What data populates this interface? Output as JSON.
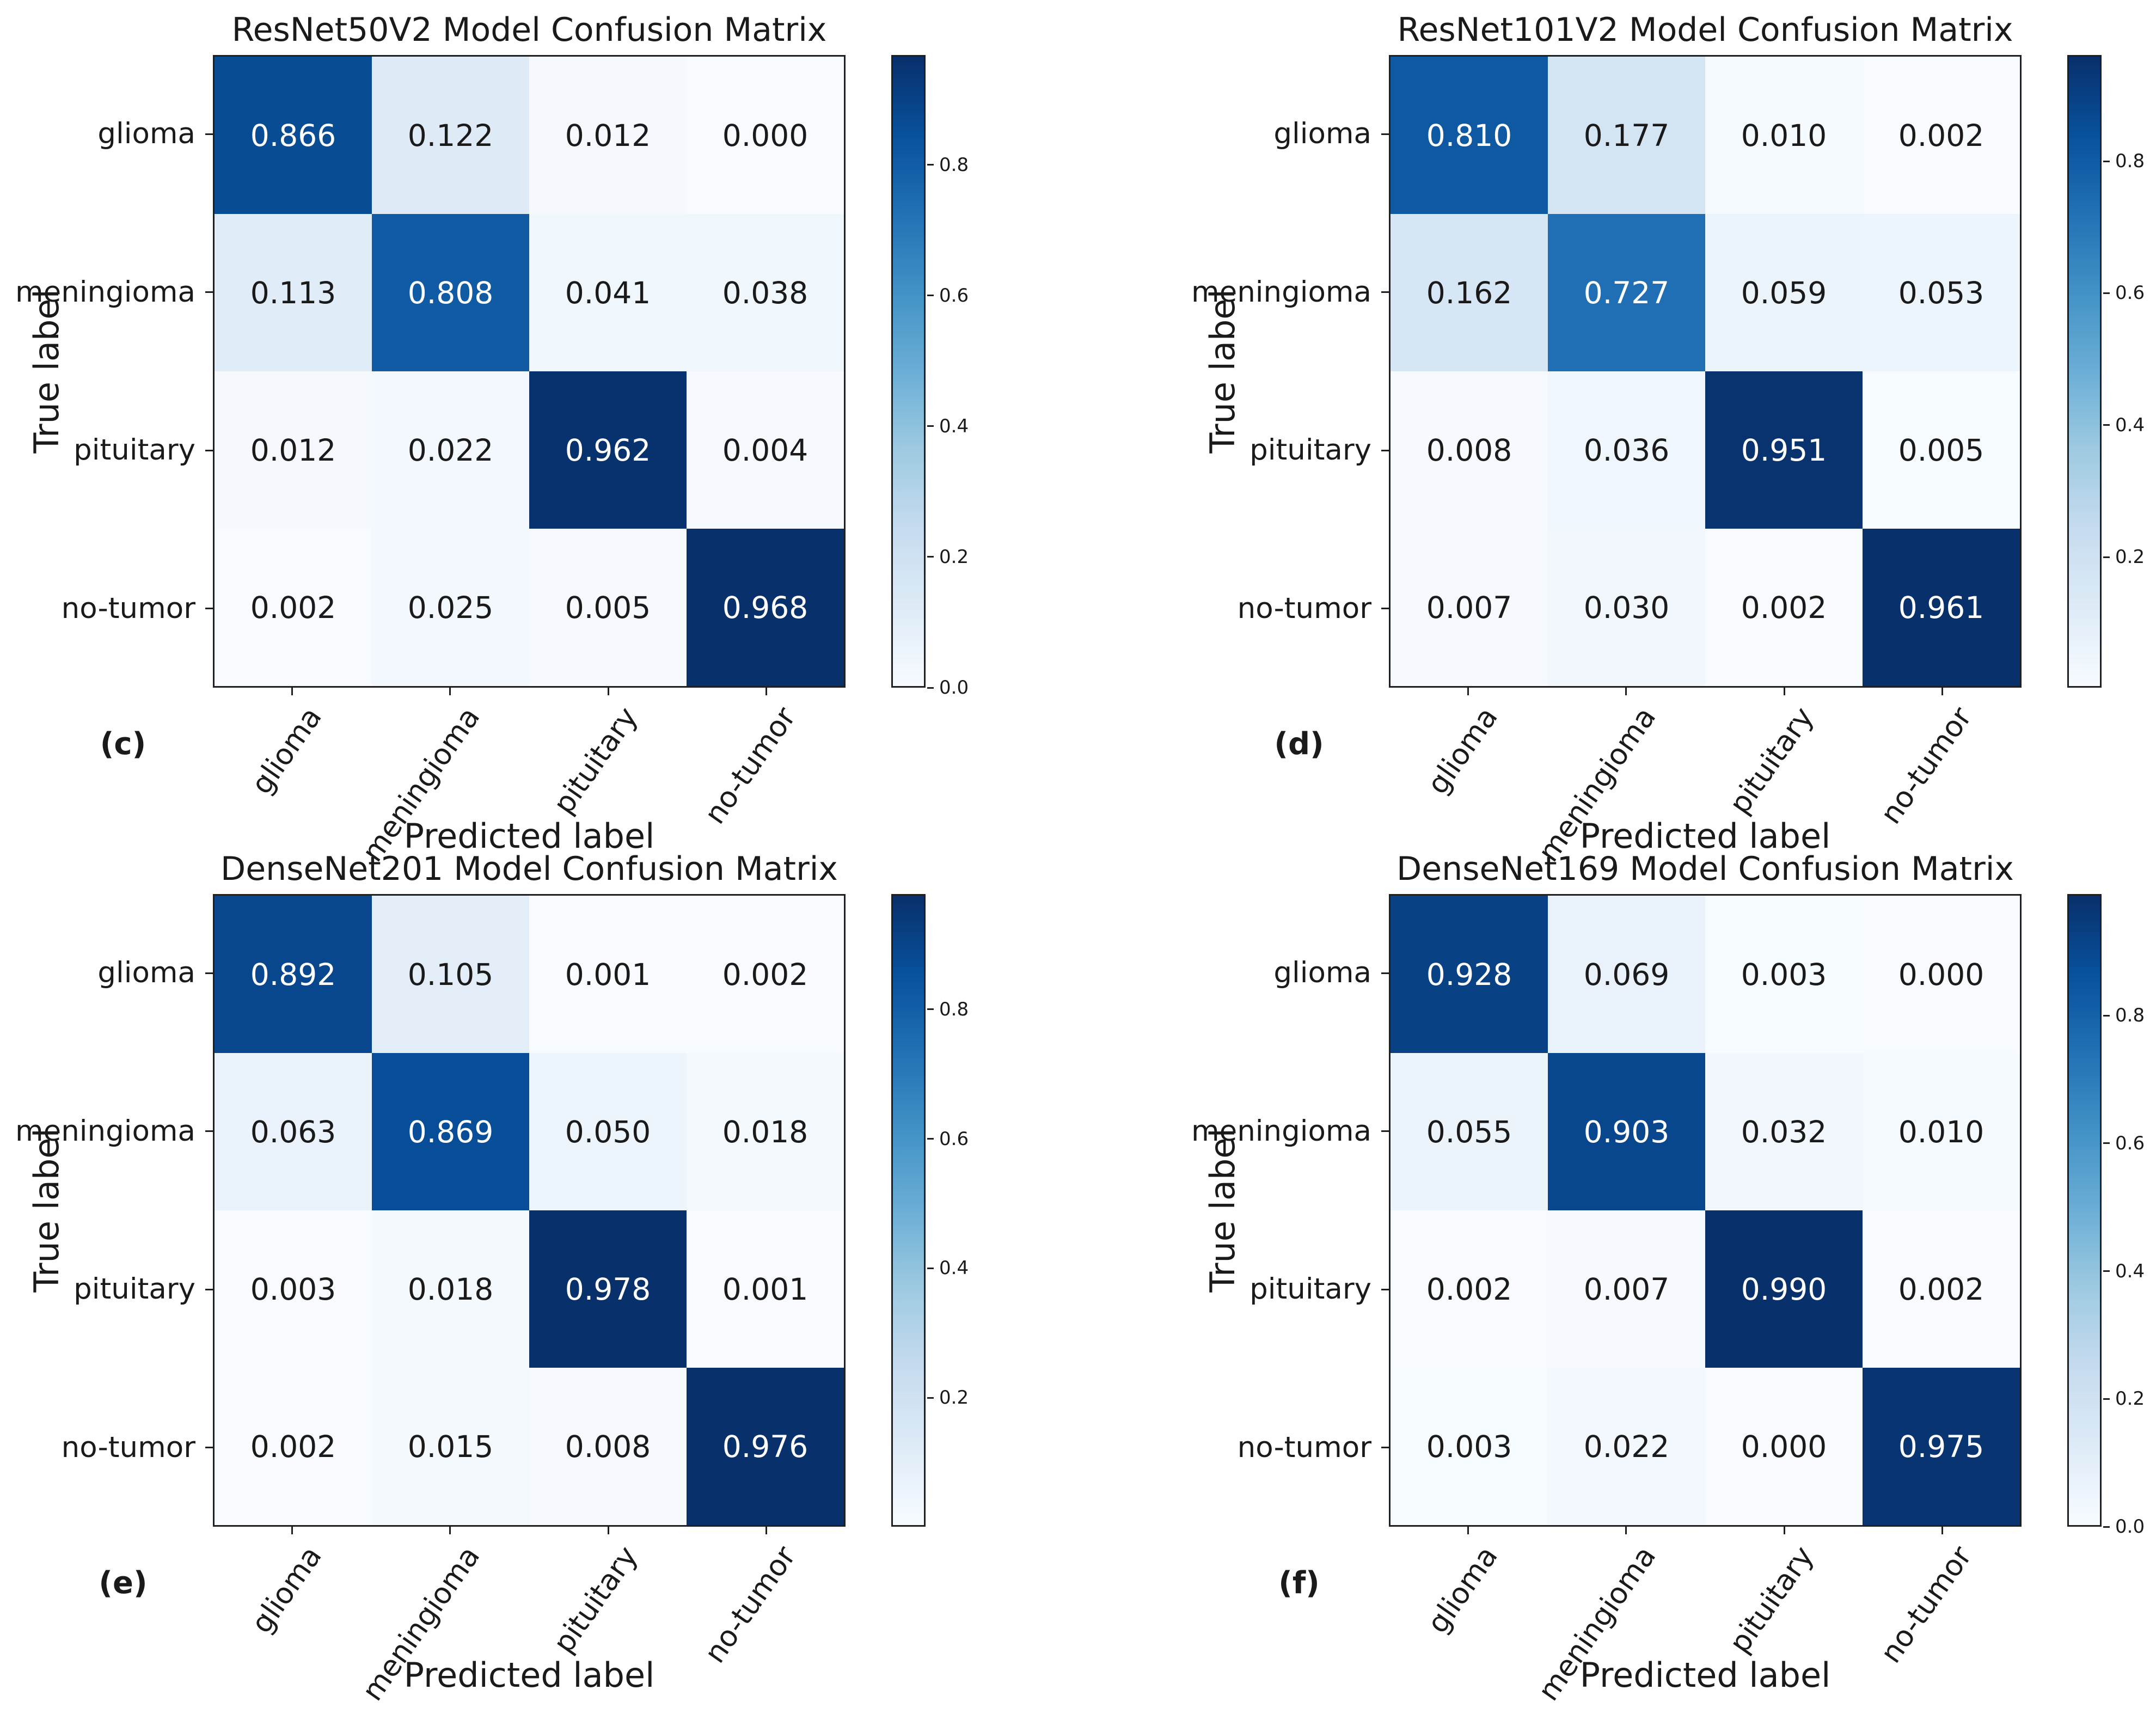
{
  "figure": {
    "background": "#ffffff",
    "colormap": "Blues",
    "colormap_dark_end": "#08306b",
    "colormap_light_end": "#f7fbff",
    "classes": [
      "glioma",
      "meningioma",
      "pituitary",
      "no-tumor"
    ]
  },
  "chart_data": [
    {
      "type": "heatmap",
      "panel_label": "(c)",
      "title": "ResNet50V2 Model Confusion Matrix",
      "xlabel": "Predicted label",
      "ylabel": "True label",
      "x_categories": [
        "glioma",
        "meningioma",
        "pituitary",
        "no-tumor"
      ],
      "y_categories": [
        "glioma",
        "meningioma",
        "pituitary",
        "no-tumor"
      ],
      "values": [
        [
          0.866,
          0.122,
          0.012,
          0.0
        ],
        [
          0.113,
          0.808,
          0.041,
          0.038
        ],
        [
          0.012,
          0.022,
          0.962,
          0.004
        ],
        [
          0.002,
          0.025,
          0.005,
          0.968
        ]
      ],
      "colormap": "Blues",
      "colorbar_position": "right",
      "colorbar_ticks": [
        0.8,
        0.6,
        0.4,
        0.2,
        0.0
      ]
    },
    {
      "type": "heatmap",
      "panel_label": "(d)",
      "title": "ResNet101V2 Model Confusion Matrix",
      "xlabel": "Predicted label",
      "ylabel": "True label",
      "x_categories": [
        "glioma",
        "meningioma",
        "pituitary",
        "no-tumor"
      ],
      "y_categories": [
        "glioma",
        "meningioma",
        "pituitary",
        "no-tumor"
      ],
      "values": [
        [
          0.81,
          0.177,
          0.01,
          0.002
        ],
        [
          0.162,
          0.727,
          0.059,
          0.053
        ],
        [
          0.008,
          0.036,
          0.951,
          0.005
        ],
        [
          0.007,
          0.03,
          0.002,
          0.961
        ]
      ],
      "colormap": "Blues",
      "colorbar_position": "right",
      "colorbar_ticks": [
        0.8,
        0.6,
        0.4,
        0.2
      ]
    },
    {
      "type": "heatmap",
      "panel_label": "(e)",
      "title": "DenseNet201 Model Confusion Matrix",
      "xlabel": "Predicted label",
      "ylabel": "True label",
      "x_categories": [
        "glioma",
        "meningioma",
        "pituitary",
        "no-tumor"
      ],
      "y_categories": [
        "glioma",
        "meningioma",
        "pituitary",
        "no-tumor"
      ],
      "values": [
        [
          0.892,
          0.105,
          0.001,
          0.002
        ],
        [
          0.063,
          0.869,
          0.05,
          0.018
        ],
        [
          0.003,
          0.018,
          0.978,
          0.001
        ],
        [
          0.002,
          0.015,
          0.008,
          0.976
        ]
      ],
      "colormap": "Blues",
      "colorbar_position": "right",
      "colorbar_ticks": [
        0.8,
        0.6,
        0.4,
        0.2
      ]
    },
    {
      "type": "heatmap",
      "panel_label": "(f)",
      "title": "DenseNet169 Model Confusion Matrix",
      "xlabel": "Predicted label",
      "ylabel": "True label",
      "x_categories": [
        "glioma",
        "meningioma",
        "pituitary",
        "no-tumor"
      ],
      "y_categories": [
        "glioma",
        "meningioma",
        "pituitary",
        "no-tumor"
      ],
      "values": [
        [
          0.928,
          0.069,
          0.003,
          0.0
        ],
        [
          0.055,
          0.903,
          0.032,
          0.01
        ],
        [
          0.002,
          0.007,
          0.99,
          0.002
        ],
        [
          0.003,
          0.022,
          0.0,
          0.975
        ]
      ],
      "colormap": "Blues",
      "colorbar_position": "right",
      "colorbar_ticks": [
        0.8,
        0.6,
        0.4,
        0.2,
        0.0
      ]
    }
  ]
}
